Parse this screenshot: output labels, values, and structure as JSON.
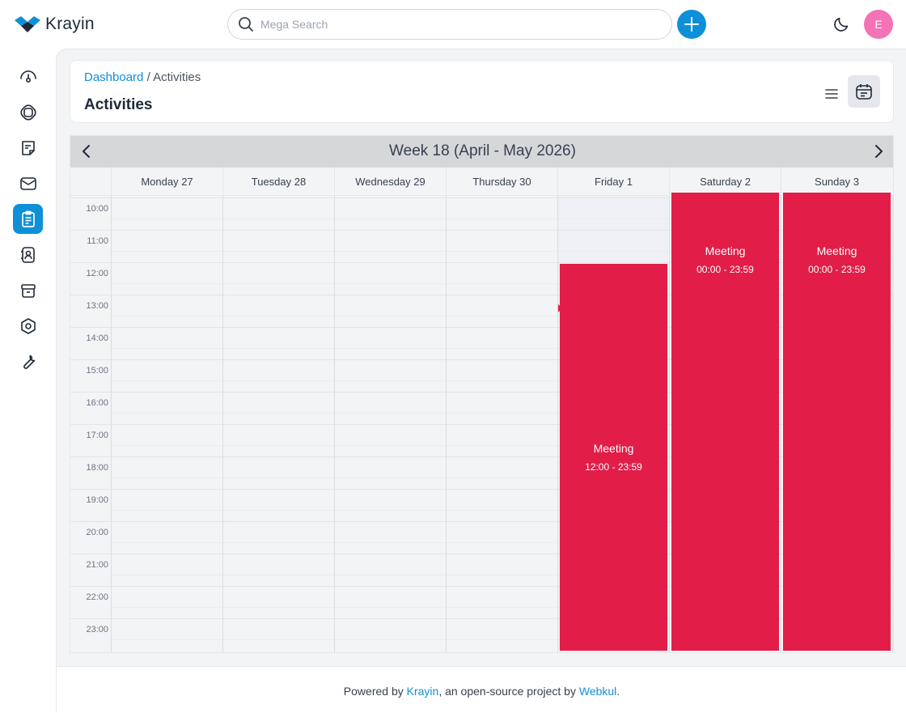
{
  "app": {
    "name": "Krayin",
    "brand_color": "#0e90d9"
  },
  "search": {
    "placeholder": "Mega Search"
  },
  "user": {
    "initial": "E",
    "avatar_color": "#f472b6"
  },
  "sidebar": {
    "items": [
      {
        "name": "dashboard-icon",
        "active": false
      },
      {
        "name": "leads-icon",
        "active": false
      },
      {
        "name": "quotes-icon",
        "active": false
      },
      {
        "name": "mail-icon",
        "active": false
      },
      {
        "name": "activities-icon",
        "active": true
      },
      {
        "name": "contacts-icon",
        "active": false
      },
      {
        "name": "products-icon",
        "active": false
      },
      {
        "name": "settings-icon",
        "active": false
      },
      {
        "name": "configuration-icon",
        "active": false
      }
    ]
  },
  "breadcrumb": {
    "root": "Dashboard",
    "separator": "/",
    "current": "Activities"
  },
  "page": {
    "title": "Activities"
  },
  "calendar": {
    "title": "Week 18 (April - May 2026)",
    "days": [
      "Monday 27",
      "Tuesday 28",
      "Wednesday 29",
      "Thursday 30",
      "Friday 1",
      "Saturday 2",
      "Sunday 3"
    ],
    "hours": [
      "10:00",
      "11:00",
      "12:00",
      "13:00",
      "14:00",
      "15:00",
      "16:00",
      "17:00",
      "18:00",
      "19:00",
      "20:00",
      "21:00",
      "22:00",
      "23:00"
    ],
    "today_index": 4,
    "event_color": "#e11d48",
    "events": [
      {
        "title": "Meeting",
        "time": "12:00 - 23:59",
        "day_index": 4,
        "start_hour": 12
      },
      {
        "title": "Meeting",
        "time": "00:00 - 23:59",
        "day_index": 5,
        "start_hour": 0
      },
      {
        "title": "Meeting",
        "time": "00:00 - 23:59",
        "day_index": 6,
        "start_hour": 0
      }
    ]
  },
  "footer": {
    "prefix": "Powered by",
    "krayin_link": "Krayin",
    "middle": ", an open-source project by",
    "webkul_link": "Webkul",
    "suffix": "."
  }
}
